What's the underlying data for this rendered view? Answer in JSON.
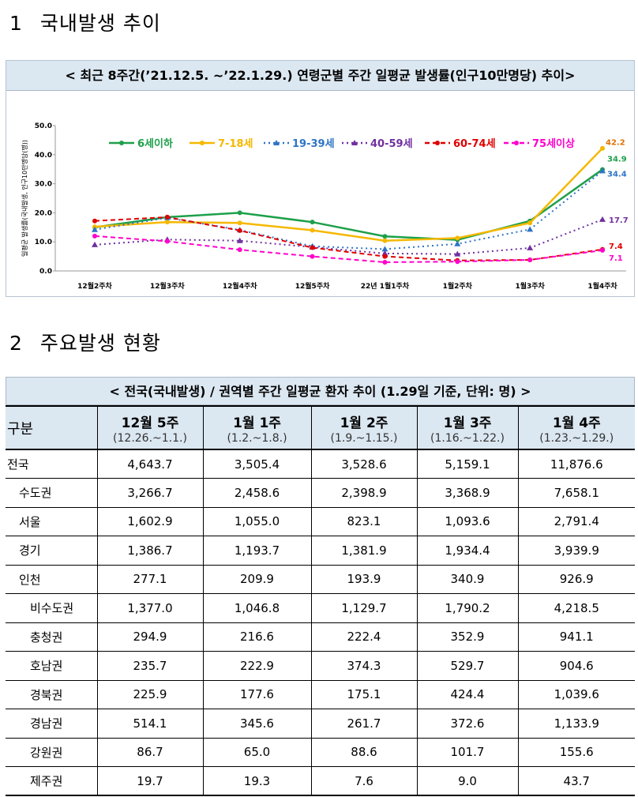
{
  "sections": {
    "s1": {
      "num": "1",
      "title": "국내발생 추이"
    },
    "s2": {
      "num": "2",
      "title": "주요발생 현황"
    }
  },
  "chart_data": {
    "type": "line",
    "title": "< 최근 8주간(’21.12.5. ~’22.1.29.) 연령군별 주간 일평균 발생률(인구10만명당) 추이>",
    "ylabel": "일평균 발생률(국내발생, 인구10만명당(명))",
    "xlabel": "",
    "ylim": [
      0,
      50
    ],
    "yticks": [
      "0.0",
      "10.0",
      "20.0",
      "30.0",
      "40.0",
      "50.0"
    ],
    "categories": [
      "12월2주차",
      "12월3주차",
      "12월4주차",
      "12월5주차",
      "22년 1월1주차",
      "1월2주차",
      "1월3주차",
      "1월4주차"
    ],
    "legend_position": "top",
    "series": [
      {
        "name": "6세이하",
        "color": "#1ea04a",
        "dash": "",
        "marker": "circle",
        "values": [
          15.0,
          18.5,
          20.0,
          16.8,
          11.9,
          10.7,
          17.2,
          34.9
        ],
        "end_label": "34.9"
      },
      {
        "name": "7-18세",
        "color": "#f5b800",
        "dash": "",
        "marker": "circle",
        "values": [
          15.2,
          16.8,
          16.5,
          14.0,
          10.4,
          11.3,
          16.5,
          42.2
        ],
        "end_label": "42.2"
      },
      {
        "name": "19-39세",
        "color": "#2e74c6",
        "dash": "2 4",
        "marker": "triangle",
        "values": [
          14.2,
          18.3,
          14.1,
          8.5,
          7.5,
          9.3,
          14.3,
          34.4
        ],
        "end_label": "34.4"
      },
      {
        "name": "40-59세",
        "color": "#7030a0",
        "dash": "2 4",
        "marker": "triangle",
        "values": [
          9.0,
          10.8,
          10.4,
          8.2,
          6.0,
          5.8,
          7.9,
          17.7
        ],
        "end_label": "17.7"
      },
      {
        "name": "60-74세",
        "color": "#e00000",
        "dash": "6 4",
        "marker": "circle",
        "values": [
          17.2,
          18.5,
          13.9,
          8.0,
          5.0,
          3.6,
          3.8,
          7.4
        ],
        "end_label": "7.4"
      },
      {
        "name": "75세이상",
        "color": "#ff00cc",
        "dash": "6 4",
        "marker": "circle",
        "values": [
          12.0,
          10.2,
          7.3,
          5.0,
          3.0,
          3.2,
          3.8,
          7.1
        ],
        "end_label": "7.1"
      }
    ],
    "end_label_colors": {
      "42.2": "#e07000",
      "34.9": "#1ea04a",
      "34.4": "#2e74c6",
      "17.7": "#7030a0",
      "7.4": "#e00000",
      "7.1": "#ff00cc"
    }
  },
  "table": {
    "title": "< 전국(국내발생) / 권역별 주간 일평균 환자 추이 (1.29일 기준, 단위: 명) >",
    "corner": "구분",
    "columns": [
      {
        "week": "12월 5주",
        "range": "(12.26.~1.1.)"
      },
      {
        "week": "1월 1주",
        "range": "(1.2.~1.8.)"
      },
      {
        "week": "1월 2주",
        "range": "(1.9.~1.15.)"
      },
      {
        "week": "1월 3주",
        "range": "(1.16.~1.22.)"
      },
      {
        "week": "1월 4주",
        "range": "(1.23.~1.29.)"
      }
    ],
    "rows": [
      {
        "label": "전국",
        "level": 1,
        "values": [
          "4,643.7",
          "3,505.4",
          "3,528.6",
          "5,159.1",
          "11,876.6"
        ]
      },
      {
        "label": "수도권",
        "level": 2,
        "values": [
          "3,266.7",
          "2,458.6",
          "2,398.9",
          "3,368.9",
          "7,658.1"
        ]
      },
      {
        "label": "서울",
        "level": 2,
        "values": [
          "1,602.9",
          "1,055.0",
          "823.1",
          "1,093.6",
          "2,791.4"
        ]
      },
      {
        "label": "경기",
        "level": 2,
        "values": [
          "1,386.7",
          "1,193.7",
          "1,381.9",
          "1,934.4",
          "3,939.9"
        ]
      },
      {
        "label": "인천",
        "level": 2,
        "values": [
          "277.1",
          "209.9",
          "193.9",
          "340.9",
          "926.9"
        ]
      },
      {
        "label": "비수도권",
        "level": 3,
        "values": [
          "1,377.0",
          "1,046.8",
          "1,129.7",
          "1,790.2",
          "4,218.5"
        ]
      },
      {
        "label": "충청권",
        "level": 3,
        "values": [
          "294.9",
          "216.6",
          "222.4",
          "352.9",
          "941.1"
        ]
      },
      {
        "label": "호남권",
        "level": 3,
        "values": [
          "235.7",
          "222.9",
          "374.3",
          "529.7",
          "904.6"
        ]
      },
      {
        "label": "경북권",
        "level": 3,
        "values": [
          "225.9",
          "177.6",
          "175.1",
          "424.4",
          "1,039.6"
        ]
      },
      {
        "label": "경남권",
        "level": 3,
        "values": [
          "514.1",
          "345.6",
          "261.7",
          "372.6",
          "1,133.9"
        ]
      },
      {
        "label": "강원권",
        "level": 3,
        "values": [
          "86.7",
          "65.0",
          "88.6",
          "101.7",
          "155.6"
        ]
      },
      {
        "label": "제주권",
        "level": 3,
        "values": [
          "19.7",
          "19.3",
          "7.6",
          "9.0",
          "43.7"
        ]
      }
    ]
  }
}
